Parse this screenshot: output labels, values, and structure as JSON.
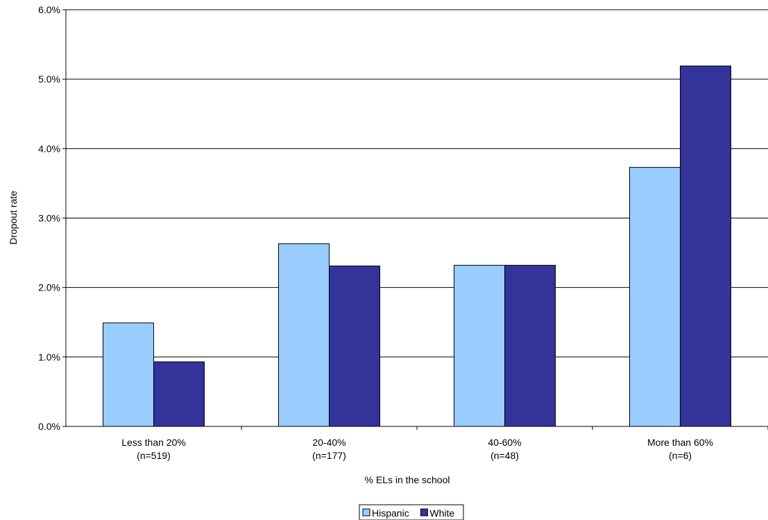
{
  "chart_data": {
    "type": "bar",
    "title": "",
    "xlabel": "% ELs in the school",
    "ylabel": "Dropout rate",
    "ylim": [
      0,
      6
    ],
    "y_unit": "%",
    "y_ticks": [
      "0.0%",
      "1.0%",
      "2.0%",
      "3.0%",
      "4.0%",
      "5.0%",
      "6.0%"
    ],
    "categories": [
      [
        "Less than 20%",
        "(n=519)"
      ],
      [
        "20-40%",
        "(n=177)"
      ],
      [
        "40-60%",
        "(n=48)"
      ],
      [
        "More than 60%",
        "(n=6)"
      ]
    ],
    "series": [
      {
        "name": "Hispanic",
        "color": "#99CCFF",
        "values": [
          1.49,
          2.63,
          2.32,
          3.73
        ]
      },
      {
        "name": "White",
        "color": "#333399",
        "values": [
          0.93,
          2.31,
          2.32,
          5.19
        ]
      }
    ],
    "grid": true,
    "legend_position": "bottom"
  }
}
